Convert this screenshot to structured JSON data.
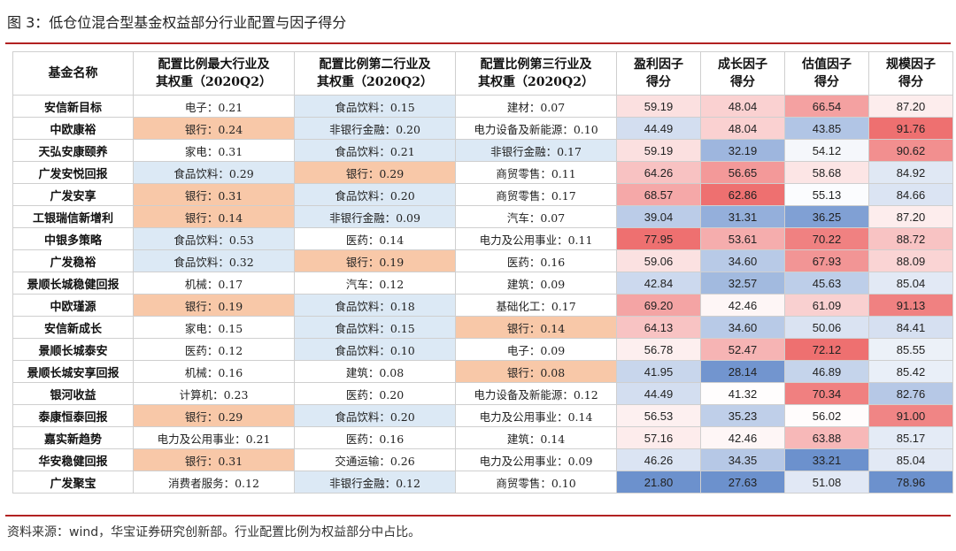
{
  "title": "图 3：低仓位混合型基金权益部分行业配置与因子得分",
  "source": "资料来源：wind，华宝证券研究创新部。行业配置比例为权益部分中占比。",
  "colors": {
    "rule": "#b22222",
    "industry_blue": "#dce9f5",
    "industry_orange": "#f8c8a8"
  },
  "table": {
    "headers": [
      [
        "基金名称"
      ],
      [
        "配置比例最大行业及",
        "其权重（2020Q2）"
      ],
      [
        "配置比例第二行业及",
        "其权重（2020Q2）"
      ],
      [
        "配置比例第三行业及",
        "其权重（2020Q2）"
      ],
      [
        "盈利因子",
        "得分"
      ],
      [
        "成长因子",
        "得分"
      ],
      [
        "估值因子",
        "得分"
      ],
      [
        "规模因子",
        "得分"
      ]
    ],
    "rows": [
      {
        "name": "安信新目标",
        "i1": "电子：0.21",
        "i2": "食品饮料：0.15",
        "i3": "建材：0.07",
        "s": [
          "59.19",
          "48.04",
          "66.54",
          "87.20"
        ]
      },
      {
        "name": "中欧康裕",
        "i1": "银行：0.24",
        "i2": "非银行金融：0.20",
        "i3": "电力设备及新能源：0.10",
        "s": [
          "44.49",
          "48.04",
          "43.85",
          "91.76"
        ]
      },
      {
        "name": "天弘安康颐养",
        "i1": "家电：0.31",
        "i2": "食品饮料：0.21",
        "i3": "非银行金融：0.17",
        "s": [
          "59.19",
          "32.19",
          "54.12",
          "90.62"
        ]
      },
      {
        "name": "广发安悦回报",
        "i1": "食品饮料：0.29",
        "i2": "银行：0.29",
        "i3": "商贸零售：0.11",
        "s": [
          "64.26",
          "56.65",
          "58.68",
          "84.92"
        ]
      },
      {
        "name": "广发安享",
        "i1": "银行：0.31",
        "i2": "食品饮料：0.20",
        "i3": "商贸零售：0.17",
        "s": [
          "68.57",
          "62.86",
          "55.13",
          "84.66"
        ]
      },
      {
        "name": "工银瑞信新增利",
        "i1": "银行：0.14",
        "i2": "非银行金融：0.09",
        "i3": "汽车：0.07",
        "s": [
          "39.04",
          "31.31",
          "36.25",
          "87.20"
        ]
      },
      {
        "name": "中银多策略",
        "i1": "食品饮料：0.53",
        "i2": "医药：0.14",
        "i3": "电力及公用事业：0.11",
        "s": [
          "77.95",
          "53.61",
          "70.22",
          "88.72"
        ]
      },
      {
        "name": "广发稳裕",
        "i1": "食品饮料：0.32",
        "i2": "银行：0.19",
        "i3": "医药：0.16",
        "s": [
          "59.06",
          "34.60",
          "67.93",
          "88.09"
        ]
      },
      {
        "name": "景顺长城稳健回报",
        "i1": "机械：0.17",
        "i2": "汽车：0.12",
        "i3": "建筑：0.09",
        "s": [
          "42.84",
          "32.57",
          "45.63",
          "85.04"
        ]
      },
      {
        "name": "中欧瑾源",
        "i1": "银行：0.19",
        "i2": "食品饮料：0.18",
        "i3": "基础化工：0.17",
        "s": [
          "69.20",
          "42.46",
          "61.09",
          "91.13"
        ]
      },
      {
        "name": "安信新成长",
        "i1": "家电：0.15",
        "i2": "食品饮料：0.15",
        "i3": "银行：0.14",
        "s": [
          "64.13",
          "34.60",
          "50.06",
          "84.41"
        ]
      },
      {
        "name": "景顺长城泰安",
        "i1": "医药：0.12",
        "i2": "食品饮料：0.10",
        "i3": "电子：0.09",
        "s": [
          "56.78",
          "52.47",
          "72.12",
          "85.55"
        ]
      },
      {
        "name": "景顺长城安享回报",
        "i1": "机械：0.16",
        "i2": "建筑：0.08",
        "i3": "银行：0.08",
        "s": [
          "41.95",
          "28.14",
          "46.89",
          "85.42"
        ]
      },
      {
        "name": "银河收益",
        "i1": "计算机：0.23",
        "i2": "医药：0.20",
        "i3": "电力设备及新能源：0.12",
        "s": [
          "44.49",
          "41.32",
          "70.34",
          "82.76"
        ]
      },
      {
        "name": "泰康恒泰回报",
        "i1": "银行：0.29",
        "i2": "食品饮料：0.20",
        "i3": "电力及公用事业：0.14",
        "s": [
          "56.53",
          "35.23",
          "56.02",
          "91.00"
        ]
      },
      {
        "name": "嘉实新趋势",
        "i1": "电力及公用事业：0.21",
        "i2": "医药：0.16",
        "i3": "建筑：0.14",
        "s": [
          "57.16",
          "42.46",
          "63.88",
          "85.17"
        ]
      },
      {
        "name": "华安稳健回报",
        "i1": "银行：0.31",
        "i2": "交通运输：0.26",
        "i3": "电力及公用事业：0.09",
        "s": [
          "46.26",
          "34.35",
          "33.21",
          "85.04"
        ]
      },
      {
        "name": "广发聚宝",
        "i1": "消费者服务：0.12",
        "i2": "非银行金融：0.12",
        "i3": "商贸零售：0.10",
        "s": [
          "21.80",
          "27.63",
          "51.08",
          "78.96"
        ]
      }
    ]
  }
}
